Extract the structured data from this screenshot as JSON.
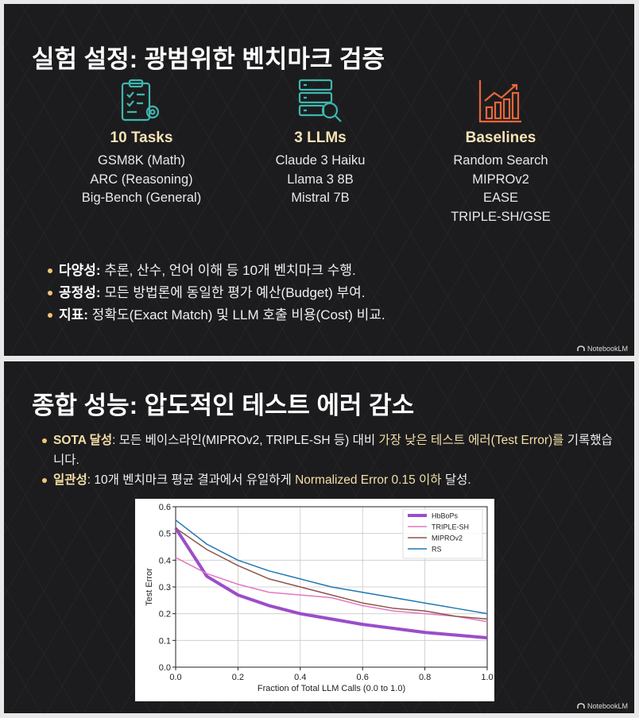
{
  "slides": [
    {
      "title": "실험 설정: 광범위한 벤치마크 검증",
      "columns": [
        {
          "heading": "10 Tasks",
          "items": [
            "GSM8K (Math)",
            "ARC (Reasoning)",
            "Big-Bench (General)"
          ]
        },
        {
          "heading": "3 LLMs",
          "items": [
            "Claude 3 Haiku",
            "Llama 3 8B",
            "Mistral 7B"
          ]
        },
        {
          "heading": "Baselines",
          "items": [
            "Random Search",
            "MIPROv2",
            "EASE",
            "TRIPLE-SH/GSE"
          ]
        }
      ],
      "bullets": [
        {
          "label": "다양성:",
          "text": " 추론, 산수, 언어 이해 등 10개 벤치마크 수행."
        },
        {
          "label": "공정성:",
          "text": " 모든 방법론에 동일한 평가 예산(Budget) 부여."
        },
        {
          "label": "지표:",
          "text": " 정확도(Exact Match) 및 LLM 호출 비용(Cost) 비교."
        }
      ],
      "watermark": "NotebookLM"
    },
    {
      "title": "종합 성능: 압도적인 테스트 에러 감소",
      "bullets": [
        {
          "parts": [
            "SOTA 달성",
            ": 모든 베이스라인(MIPROv2, TRIPLE-SH 등) 대비 ",
            "가장 낮은 테스트 에러(Test Error)를",
            " 기록했습니다."
          ]
        },
        {
          "parts": [
            "일관성",
            ": 10개 벤치마크 평균 결과에서 유일하게 ",
            "Normalized Error 0.15 이하",
            " 달성."
          ]
        }
      ],
      "watermark": "NotebookLM"
    }
  ],
  "chart_data": {
    "type": "line",
    "x_label": "Fraction of Total LLM Calls (0.0 to 1.0)",
    "y_label": "Test Error",
    "x": [
      0,
      0.1,
      0.2,
      0.3,
      0.4,
      0.5,
      0.6,
      0.7,
      0.8,
      0.9,
      1.0
    ],
    "series": [
      {
        "name": "HbBoPs",
        "color": "#9b4dca",
        "width": 4,
        "values": [
          0.52,
          0.34,
          0.27,
          0.23,
          0.2,
          0.18,
          0.16,
          0.145,
          0.13,
          0.12,
          0.11
        ]
      },
      {
        "name": "TRIPLE-SH",
        "color": "#e377c2",
        "width": 1.5,
        "values": [
          0.41,
          0.35,
          0.31,
          0.28,
          0.27,
          0.26,
          0.23,
          0.21,
          0.2,
          0.19,
          0.17
        ]
      },
      {
        "name": "MIPROv2",
        "color": "#8c564b",
        "width": 1.5,
        "values": [
          0.52,
          0.44,
          0.38,
          0.33,
          0.3,
          0.27,
          0.24,
          0.22,
          0.21,
          0.19,
          0.18
        ]
      },
      {
        "name": "RS",
        "color": "#1f77b4",
        "width": 1.5,
        "values": [
          0.55,
          0.46,
          0.4,
          0.36,
          0.33,
          0.3,
          0.28,
          0.26,
          0.24,
          0.22,
          0.2
        ]
      }
    ],
    "xlim": [
      0,
      1
    ],
    "ylim": [
      0,
      0.6
    ],
    "xticks": [
      {
        "value": 0,
        "label": "0.0"
      },
      0.2,
      0.4,
      0.6,
      0.8,
      {
        "value": 1,
        "label": "1.0"
      }
    ],
    "yticks": [
      {
        "value": 0,
        "label": "0.0"
      },
      0.1,
      0.2,
      0.3,
      0.4,
      0.5,
      0.6
    ],
    "grid": true,
    "legend": "upper right"
  }
}
